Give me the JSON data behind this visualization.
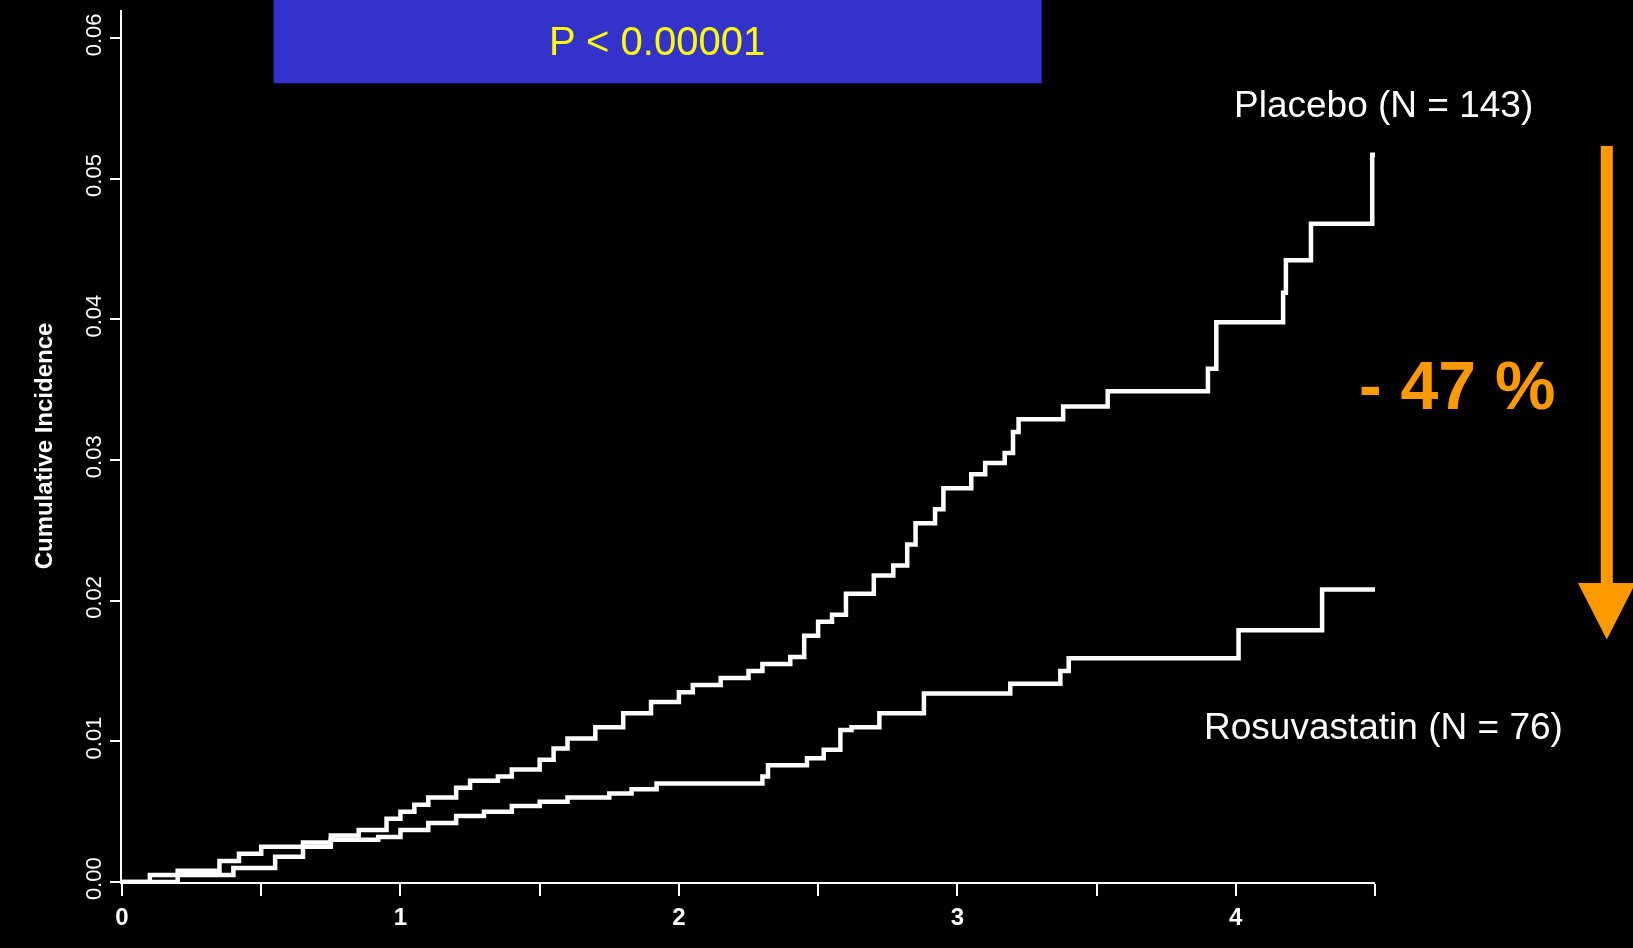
{
  "chart_data": {
    "type": "step",
    "ylabel": "Cumulative Incidence",
    "annotations": [
      "P < 0.00001",
      "- 47 %"
    ],
    "xlim": [
      0,
      4.5
    ],
    "ylim": [
      0,
      0.062
    ],
    "xticks": [
      0,
      {
        "value": 0.5,
        "label": null
      },
      1,
      {
        "value": 1.5,
        "label": null
      },
      2,
      {
        "value": 2.5,
        "label": null
      },
      3,
      {
        "value": 3.5,
        "label": null
      },
      4,
      {
        "value": 4.5,
        "label": null
      }
    ],
    "yticks": [
      {
        "value": 0,
        "label": "0.00"
      },
      {
        "value": 0.01,
        "label": "0.01"
      },
      {
        "value": 0.02,
        "label": "0.02"
      },
      {
        "value": 0.03,
        "label": "0.03"
      },
      {
        "value": 0.04,
        "label": "0.04"
      },
      {
        "value": 0.05,
        "label": "0.05"
      },
      {
        "value": 0.06,
        "label": "0.06"
      }
    ],
    "grid": false,
    "legend": false,
    "marker": "none",
    "line_style": "solid",
    "series": [
      {
        "name": "Placebo (N = 143)",
        "color": "#ffffff",
        "x": [
          0,
          0.1,
          0.2,
          0.35,
          0.42,
          0.5,
          0.65,
          0.75,
          0.85,
          0.95,
          1.0,
          1.05,
          1.1,
          1.2,
          1.25,
          1.35,
          1.4,
          1.5,
          1.55,
          1.6,
          1.7,
          1.8,
          1.9,
          2.0,
          2.05,
          2.15,
          2.25,
          2.3,
          2.4,
          2.45,
          2.5,
          2.55,
          2.6,
          2.7,
          2.77,
          2.82,
          2.85,
          2.92,
          2.95,
          3.05,
          3.1,
          3.17,
          3.2,
          3.22,
          3.38,
          3.54,
          3.9,
          3.93,
          4.17,
          4.18,
          4.27,
          4.49,
          4.5
        ],
        "values": [
          0,
          0.0005,
          0.0008,
          0.0015,
          0.002,
          0.0025,
          0.0028,
          0.0033,
          0.0037,
          0.0045,
          0.005,
          0.0055,
          0.006,
          0.0067,
          0.0072,
          0.0075,
          0.008,
          0.0087,
          0.0095,
          0.0102,
          0.011,
          0.012,
          0.0128,
          0.0135,
          0.014,
          0.0145,
          0.015,
          0.0155,
          0.016,
          0.0175,
          0.0185,
          0.019,
          0.0205,
          0.0218,
          0.0225,
          0.024,
          0.0255,
          0.0265,
          0.028,
          0.029,
          0.0298,
          0.0305,
          0.032,
          0.0329,
          0.0338,
          0.0349,
          0.0365,
          0.0398,
          0.0419,
          0.0442,
          0.0468,
          0.0517,
          0.0517
        ]
      },
      {
        "name": "Rosuvastatin (N = 76)",
        "color": "#ffffff",
        "x": [
          0,
          0.2,
          0.4,
          0.55,
          0.65,
          0.75,
          0.92,
          1.0,
          1.1,
          1.2,
          1.3,
          1.4,
          1.5,
          1.6,
          1.75,
          1.83,
          1.92,
          2.3,
          2.32,
          2.46,
          2.52,
          2.58,
          2.62,
          2.72,
          2.88,
          3.19,
          3.37,
          3.4,
          4.01,
          4.31,
          4.5
        ],
        "values": [
          0,
          0.0005,
          0.001,
          0.0018,
          0.0025,
          0.003,
          0.0032,
          0.0037,
          0.0042,
          0.0047,
          0.005,
          0.0054,
          0.0057,
          0.006,
          0.0063,
          0.0066,
          0.007,
          0.0075,
          0.0083,
          0.0088,
          0.0094,
          0.0108,
          0.011,
          0.012,
          0.0134,
          0.0141,
          0.015,
          0.0159,
          0.0179,
          0.0208,
          0.0208
        ]
      }
    ]
  }
}
